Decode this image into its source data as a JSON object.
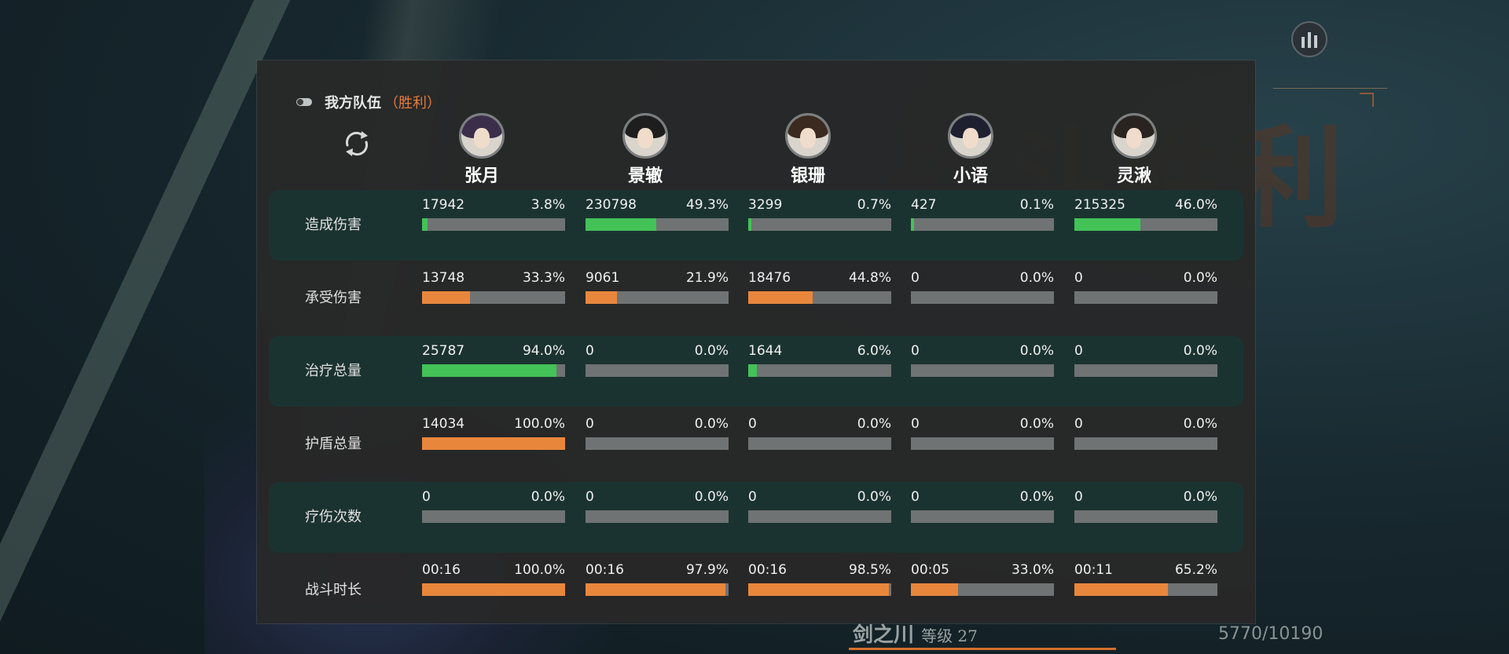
{
  "team_header": {
    "label": "我方队伍",
    "result": "（胜利）"
  },
  "background": {
    "big_text": "战斗胜利"
  },
  "footer": {
    "name": "剑之川",
    "level": "等级 27",
    "exp": "5770/10190"
  },
  "colors": {
    "green": "#43c257",
    "orange": "#e8873c",
    "accent": "#e67c3c"
  },
  "icons": {
    "stats": "bar-chart-icon",
    "refresh": "refresh-icon",
    "toggle": "toggle-icon"
  },
  "heroes": [
    {
      "name": "张月",
      "hair": "#3b2e4a"
    },
    {
      "name": "景辙",
      "hair": "#1e1e1e"
    },
    {
      "name": "银珊",
      "hair": "#3a2a20"
    },
    {
      "name": "小语",
      "hair": "#1e2030"
    },
    {
      "name": "灵湫",
      "hair": "#2a2420"
    }
  ],
  "rows": [
    {
      "label": "造成伤害",
      "color": "green",
      "cells": [
        {
          "value": "17942",
          "percent": "3.8%",
          "fraction": 0.038
        },
        {
          "value": "230798",
          "percent": "49.3%",
          "fraction": 0.493
        },
        {
          "value": "3299",
          "percent": "0.7%",
          "fraction": 0.007
        },
        {
          "value": "427",
          "percent": "0.1%",
          "fraction": 0.001
        },
        {
          "value": "215325",
          "percent": "46.0%",
          "fraction": 0.46
        }
      ]
    },
    {
      "label": "承受伤害",
      "color": "orange",
      "cells": [
        {
          "value": "13748",
          "percent": "33.3%",
          "fraction": 0.333
        },
        {
          "value": "9061",
          "percent": "21.9%",
          "fraction": 0.219
        },
        {
          "value": "18476",
          "percent": "44.8%",
          "fraction": 0.448
        },
        {
          "value": "0",
          "percent": "0.0%",
          "fraction": 0
        },
        {
          "value": "0",
          "percent": "0.0%",
          "fraction": 0
        }
      ]
    },
    {
      "label": "治疗总量",
      "color": "green",
      "cells": [
        {
          "value": "25787",
          "percent": "94.0%",
          "fraction": 0.94
        },
        {
          "value": "0",
          "percent": "0.0%",
          "fraction": 0
        },
        {
          "value": "1644",
          "percent": "6.0%",
          "fraction": 0.06
        },
        {
          "value": "0",
          "percent": "0.0%",
          "fraction": 0
        },
        {
          "value": "0",
          "percent": "0.0%",
          "fraction": 0
        }
      ]
    },
    {
      "label": "护盾总量",
      "color": "orange",
      "cells": [
        {
          "value": "14034",
          "percent": "100.0%",
          "fraction": 1.0
        },
        {
          "value": "0",
          "percent": "0.0%",
          "fraction": 0
        },
        {
          "value": "0",
          "percent": "0.0%",
          "fraction": 0
        },
        {
          "value": "0",
          "percent": "0.0%",
          "fraction": 0
        },
        {
          "value": "0",
          "percent": "0.0%",
          "fraction": 0
        }
      ]
    },
    {
      "label": "疗伤次数",
      "color": "green",
      "cells": [
        {
          "value": "0",
          "percent": "0.0%",
          "fraction": 0
        },
        {
          "value": "0",
          "percent": "0.0%",
          "fraction": 0
        },
        {
          "value": "0",
          "percent": "0.0%",
          "fraction": 0
        },
        {
          "value": "0",
          "percent": "0.0%",
          "fraction": 0
        },
        {
          "value": "0",
          "percent": "0.0%",
          "fraction": 0
        }
      ]
    },
    {
      "label": "战斗时长",
      "color": "orange",
      "cells": [
        {
          "value": "00:16",
          "percent": "100.0%",
          "fraction": 1.0
        },
        {
          "value": "00:16",
          "percent": "97.9%",
          "fraction": 0.979
        },
        {
          "value": "00:16",
          "percent": "98.5%",
          "fraction": 0.985
        },
        {
          "value": "00:05",
          "percent": "33.0%",
          "fraction": 0.33
        },
        {
          "value": "00:11",
          "percent": "65.2%",
          "fraction": 0.652
        }
      ]
    }
  ]
}
